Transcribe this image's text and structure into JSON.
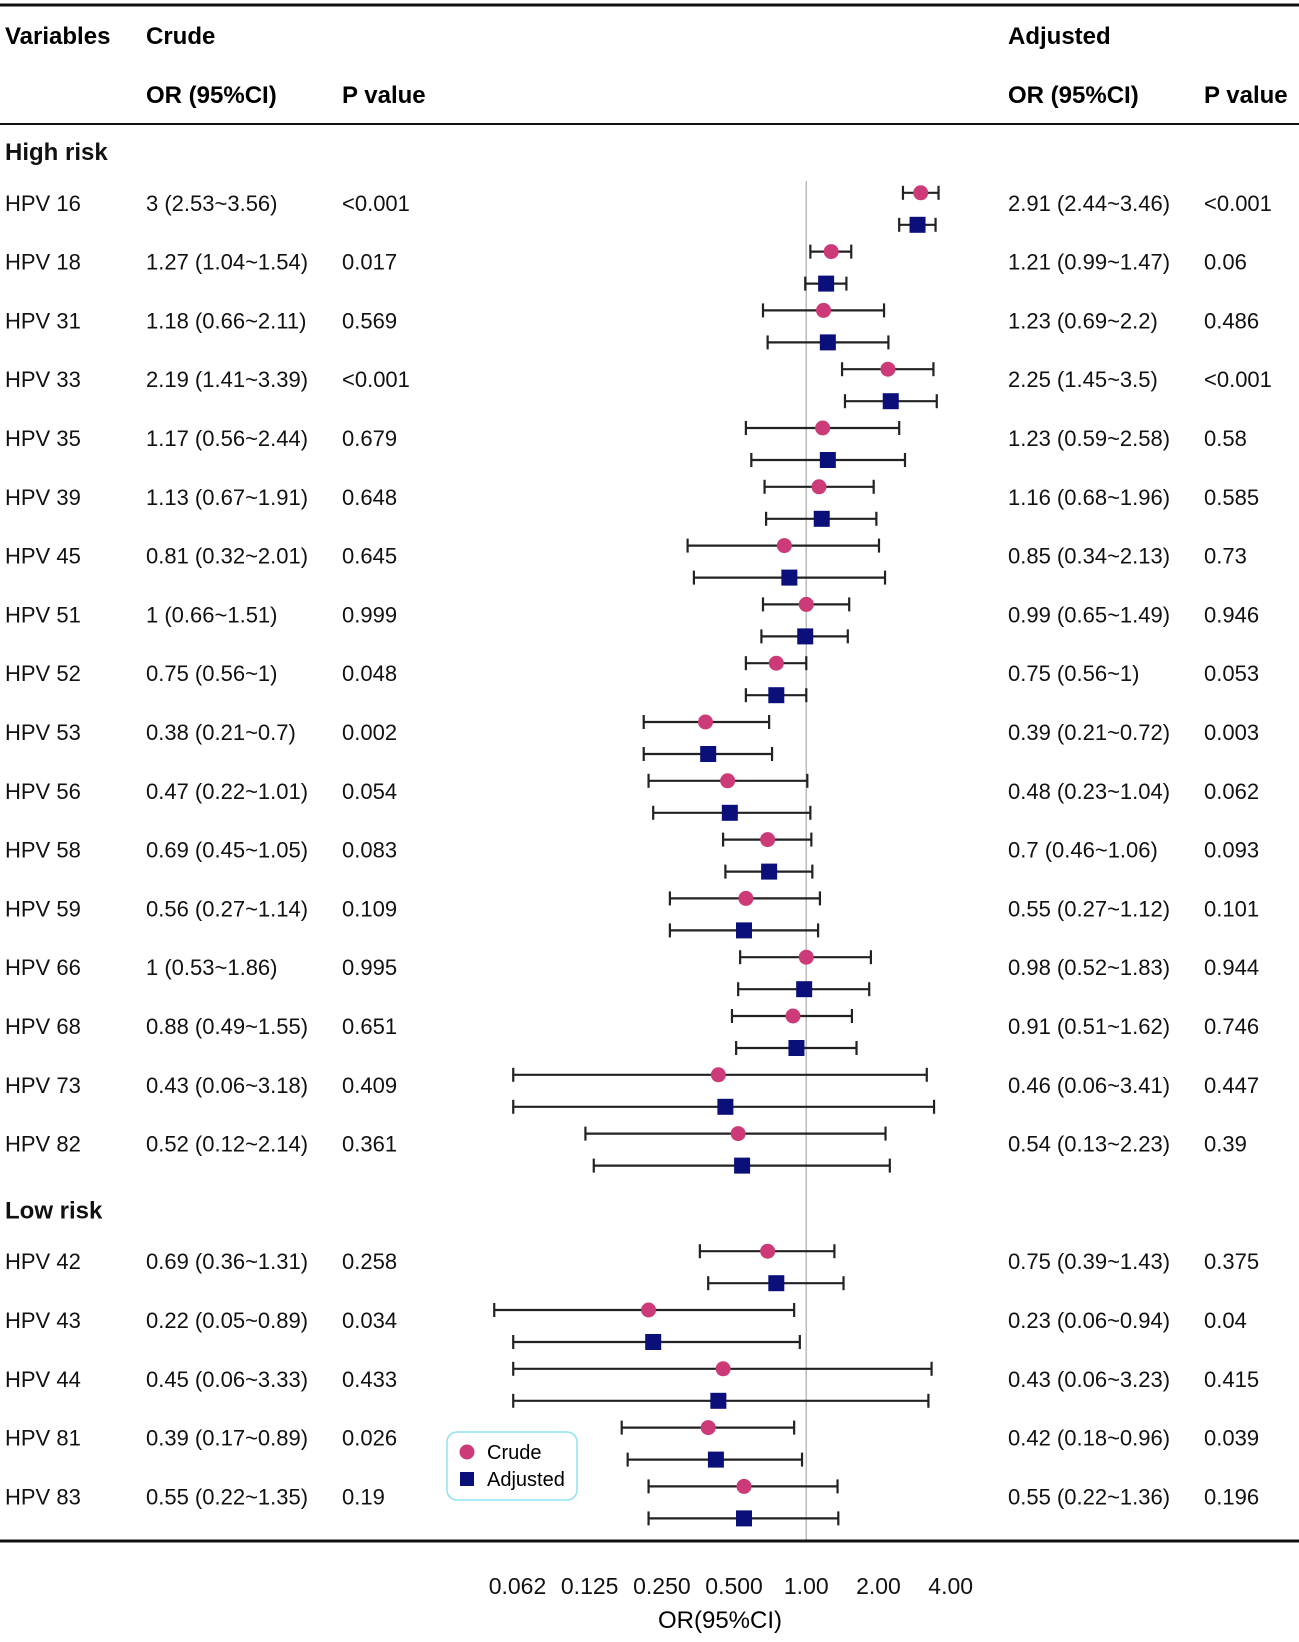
{
  "headers": {
    "variables": "Variables",
    "crude": "Crude",
    "adjusted": "Adjusted",
    "crude_or": "OR (95%CI)",
    "crude_p": "P value",
    "adjusted_or": "OR (95%CI)",
    "adjusted_p": "P value"
  },
  "legend": {
    "crude": "Crude",
    "adjusted": "Adjusted"
  },
  "colors": {
    "crude": "#cc3a78",
    "adjusted": "#0a0f7a",
    "legend_border": "#8fe3f0",
    "reference_line": "#bbbbbb",
    "whisker": "#222222"
  },
  "chart_data": {
    "type": "forest",
    "xlabel": "OR(95%CI)",
    "x_scale": "log2",
    "xlim": [
      0.04,
      5.2
    ],
    "reference_value": 1,
    "x_ticks": [
      0.0625,
      0.125,
      0.25,
      0.5,
      1,
      2,
      4
    ],
    "x_tick_labels": [
      "0.062",
      "0.125",
      "0.250",
      "0.500",
      "1.00",
      "2.00",
      "4.00"
    ],
    "groups": [
      {
        "name": "High risk",
        "rows": [
          {
            "label": "HPV 16",
            "crude": {
              "or": 3,
              "lo": 2.53,
              "hi": 3.56,
              "text": "3 (2.53~3.56)",
              "p": "<0.001"
            },
            "adjusted": {
              "or": 2.91,
              "lo": 2.44,
              "hi": 3.46,
              "text": "2.91 (2.44~3.46)",
              "p": "<0.001"
            }
          },
          {
            "label": "HPV 18",
            "crude": {
              "or": 1.27,
              "lo": 1.04,
              "hi": 1.54,
              "text": "1.27 (1.04~1.54)",
              "p": "0.017"
            },
            "adjusted": {
              "or": 1.21,
              "lo": 0.99,
              "hi": 1.47,
              "text": "1.21 (0.99~1.47)",
              "p": "0.06"
            }
          },
          {
            "label": "HPV 31",
            "crude": {
              "or": 1.18,
              "lo": 0.66,
              "hi": 2.11,
              "text": "1.18 (0.66~2.11)",
              "p": "0.569"
            },
            "adjusted": {
              "or": 1.23,
              "lo": 0.69,
              "hi": 2.2,
              "text": "1.23 (0.69~2.2)",
              "p": "0.486"
            }
          },
          {
            "label": "HPV 33",
            "crude": {
              "or": 2.19,
              "lo": 1.41,
              "hi": 3.39,
              "text": "2.19 (1.41~3.39)",
              "p": "<0.001"
            },
            "adjusted": {
              "or": 2.25,
              "lo": 1.45,
              "hi": 3.5,
              "text": "2.25 (1.45~3.5)",
              "p": "<0.001"
            }
          },
          {
            "label": "HPV 35",
            "crude": {
              "or": 1.17,
              "lo": 0.56,
              "hi": 2.44,
              "text": "1.17 (0.56~2.44)",
              "p": "0.679"
            },
            "adjusted": {
              "or": 1.23,
              "lo": 0.59,
              "hi": 2.58,
              "text": "1.23 (0.59~2.58)",
              "p": "0.58"
            }
          },
          {
            "label": "HPV 39",
            "crude": {
              "or": 1.13,
              "lo": 0.67,
              "hi": 1.91,
              "text": "1.13 (0.67~1.91)",
              "p": "0.648"
            },
            "adjusted": {
              "or": 1.16,
              "lo": 0.68,
              "hi": 1.96,
              "text": "1.16 (0.68~1.96)",
              "p": "0.585"
            }
          },
          {
            "label": "HPV 45",
            "crude": {
              "or": 0.81,
              "lo": 0.32,
              "hi": 2.01,
              "text": "0.81 (0.32~2.01)",
              "p": "0.645"
            },
            "adjusted": {
              "or": 0.85,
              "lo": 0.34,
              "hi": 2.13,
              "text": "0.85 (0.34~2.13)",
              "p": "0.73"
            }
          },
          {
            "label": "HPV 51",
            "crude": {
              "or": 1,
              "lo": 0.66,
              "hi": 1.51,
              "text": "1 (0.66~1.51)",
              "p": "0.999"
            },
            "adjusted": {
              "or": 0.99,
              "lo": 0.65,
              "hi": 1.49,
              "text": "0.99 (0.65~1.49)",
              "p": "0.946"
            }
          },
          {
            "label": "HPV 52",
            "crude": {
              "or": 0.75,
              "lo": 0.56,
              "hi": 1,
              "text": "0.75 (0.56~1)",
              "p": "0.048"
            },
            "adjusted": {
              "or": 0.75,
              "lo": 0.56,
              "hi": 1,
              "text": "0.75 (0.56~1)",
              "p": "0.053"
            }
          },
          {
            "label": "HPV 53",
            "crude": {
              "or": 0.38,
              "lo": 0.21,
              "hi": 0.7,
              "text": "0.38 (0.21~0.7)",
              "p": "0.002"
            },
            "adjusted": {
              "or": 0.39,
              "lo": 0.21,
              "hi": 0.72,
              "text": "0.39 (0.21~0.72)",
              "p": "0.003"
            }
          },
          {
            "label": "HPV 56",
            "crude": {
              "or": 0.47,
              "lo": 0.22,
              "hi": 1.01,
              "text": "0.47 (0.22~1.01)",
              "p": "0.054"
            },
            "adjusted": {
              "or": 0.48,
              "lo": 0.23,
              "hi": 1.04,
              "text": "0.48 (0.23~1.04)",
              "p": "0.062"
            }
          },
          {
            "label": "HPV 58",
            "crude": {
              "or": 0.69,
              "lo": 0.45,
              "hi": 1.05,
              "text": "0.69 (0.45~1.05)",
              "p": "0.083"
            },
            "adjusted": {
              "or": 0.7,
              "lo": 0.46,
              "hi": 1.06,
              "text": "0.7 (0.46~1.06)",
              "p": "0.093"
            }
          },
          {
            "label": "HPV 59",
            "crude": {
              "or": 0.56,
              "lo": 0.27,
              "hi": 1.14,
              "text": "0.56 (0.27~1.14)",
              "p": "0.109"
            },
            "adjusted": {
              "or": 0.55,
              "lo": 0.27,
              "hi": 1.12,
              "text": "0.55 (0.27~1.12)",
              "p": "0.101"
            }
          },
          {
            "label": "HPV 66",
            "crude": {
              "or": 1,
              "lo": 0.53,
              "hi": 1.86,
              "text": "1 (0.53~1.86)",
              "p": "0.995"
            },
            "adjusted": {
              "or": 0.98,
              "lo": 0.52,
              "hi": 1.83,
              "text": "0.98 (0.52~1.83)",
              "p": "0.944"
            }
          },
          {
            "label": "HPV 68",
            "crude": {
              "or": 0.88,
              "lo": 0.49,
              "hi": 1.55,
              "text": "0.88 (0.49~1.55)",
              "p": "0.651"
            },
            "adjusted": {
              "or": 0.91,
              "lo": 0.51,
              "hi": 1.62,
              "text": "0.91 (0.51~1.62)",
              "p": "0.746"
            }
          },
          {
            "label": "HPV 73",
            "crude": {
              "or": 0.43,
              "lo": 0.06,
              "hi": 3.18,
              "text": "0.43 (0.06~3.18)",
              "p": "0.409"
            },
            "adjusted": {
              "or": 0.46,
              "lo": 0.06,
              "hi": 3.41,
              "text": "0.46 (0.06~3.41)",
              "p": "0.447"
            }
          },
          {
            "label": "HPV 82",
            "crude": {
              "or": 0.52,
              "lo": 0.12,
              "hi": 2.14,
              "text": "0.52 (0.12~2.14)",
              "p": "0.361"
            },
            "adjusted": {
              "or": 0.54,
              "lo": 0.13,
              "hi": 2.23,
              "text": "0.54 (0.13~2.23)",
              "p": "0.39"
            }
          }
        ]
      },
      {
        "name": "Low risk",
        "rows": [
          {
            "label": "HPV 42",
            "crude": {
              "or": 0.69,
              "lo": 0.36,
              "hi": 1.31,
              "text": "0.69 (0.36~1.31)",
              "p": "0.258"
            },
            "adjusted": {
              "or": 0.75,
              "lo": 0.39,
              "hi": 1.43,
              "text": "0.75 (0.39~1.43)",
              "p": "0.375"
            }
          },
          {
            "label": "HPV 43",
            "crude": {
              "or": 0.22,
              "lo": 0.05,
              "hi": 0.89,
              "text": "0.22 (0.05~0.89)",
              "p": "0.034"
            },
            "adjusted": {
              "or": 0.23,
              "lo": 0.06,
              "hi": 0.94,
              "text": "0.23 (0.06~0.94)",
              "p": "0.04"
            }
          },
          {
            "label": "HPV 44",
            "crude": {
              "or": 0.45,
              "lo": 0.06,
              "hi": 3.33,
              "text": "0.45 (0.06~3.33)",
              "p": "0.433"
            },
            "adjusted": {
              "or": 0.43,
              "lo": 0.06,
              "hi": 3.23,
              "text": "0.43 (0.06~3.23)",
              "p": "0.415"
            }
          },
          {
            "label": "HPV 81",
            "crude": {
              "or": 0.39,
              "lo": 0.17,
              "hi": 0.89,
              "text": "0.39 (0.17~0.89)",
              "p": "0.026"
            },
            "adjusted": {
              "or": 0.42,
              "lo": 0.18,
              "hi": 0.96,
              "text": "0.42 (0.18~0.96)",
              "p": "0.039"
            }
          },
          {
            "label": "HPV 83",
            "crude": {
              "or": 0.55,
              "lo": 0.22,
              "hi": 1.35,
              "text": "0.55 (0.22~1.35)",
              "p": "0.19"
            },
            "adjusted": {
              "or": 0.55,
              "lo": 0.22,
              "hi": 1.36,
              "text": "0.55 (0.22~1.36)",
              "p": "0.196"
            }
          }
        ]
      }
    ]
  }
}
